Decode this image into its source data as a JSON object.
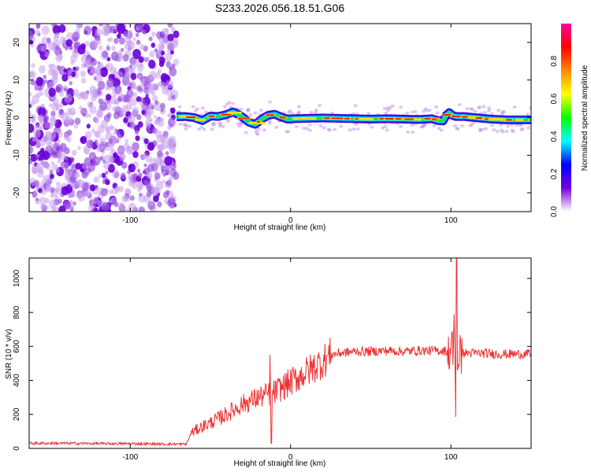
{
  "title": "S233.2026.056.18.51.G06",
  "chart_data": [
    {
      "type": "heatmap",
      "xlabel": "Height of straight line (km)",
      "ylabel": "Frequency (Hz)",
      "xlim": [
        -163,
        150
      ],
      "ylim": [
        -25,
        25
      ],
      "xticks": [
        -100,
        0,
        100
      ],
      "xtick_labels": [
        "-100",
        "0",
        "100"
      ],
      "yticks": [
        20,
        10,
        0,
        -10,
        -20
      ],
      "ytick_labels": [
        "20",
        "10",
        "0",
        "-10",
        "-20"
      ],
      "noise_region_x": [
        -163,
        -71
      ],
      "signal_start_x": -71,
      "signal_track": {
        "x": [
          -71,
          -66,
          -60,
          -55,
          -50,
          -45,
          -40,
          -36,
          -32,
          -29,
          -26,
          -22,
          -18,
          -14,
          -10,
          -6,
          -2,
          2,
          10,
          20,
          30,
          40,
          50,
          60,
          70,
          80,
          88,
          92,
          95,
          97,
          99,
          101,
          103,
          108,
          115,
          125,
          135,
          150
        ],
        "freq": [
          0.2,
          0.3,
          0.0,
          -0.8,
          0.4,
          0.3,
          0.8,
          1.5,
          0.7,
          -0.2,
          -1.2,
          -1.8,
          -0.4,
          0.6,
          0.9,
          0.2,
          -0.4,
          -0.3,
          -0.2,
          -0.1,
          -0.2,
          -0.3,
          -0.4,
          -0.3,
          -0.4,
          -0.5,
          -0.3,
          -0.8,
          -0.9,
          0.6,
          1.3,
          0.6,
          0.3,
          0.3,
          0.0,
          -0.4,
          -0.6,
          -0.6
        ]
      }
    },
    {
      "type": "line",
      "xlabel": "Height of straight line (km)",
      "ylabel": "SNR (10 * v/v)",
      "xlim": [
        -163,
        150
      ],
      "ylim": [
        0,
        1120
      ],
      "xticks": [
        -100,
        0,
        100
      ],
      "xtick_labels": [
        "-100",
        "0",
        "100"
      ],
      "yticks": [
        0,
        200,
        400,
        600,
        800,
        1000
      ],
      "ytick_labels": [
        "0",
        "200",
        "400",
        "600",
        "800",
        "1000"
      ],
      "color": "#ee3333",
      "series": [
        {
          "name": "SNR",
          "x": [
            -163,
            -140,
            -120,
            -100,
            -80,
            -65,
            -62,
            -55,
            -50,
            -40,
            -30,
            -20,
            -10,
            -5,
            0,
            10,
            20,
            25,
            30,
            40,
            50,
            60,
            70,
            80,
            90,
            95,
            100,
            104,
            110,
            120,
            130,
            150
          ],
          "values": [
            30,
            30,
            28,
            28,
            25,
            25,
            90,
            130,
            150,
            200,
            260,
            300,
            330,
            360,
            390,
            450,
            510,
            550,
            560,
            570,
            570,
            575,
            570,
            575,
            575,
            575,
            570,
            560,
            560,
            560,
            555,
            555
          ]
        }
      ],
      "annotations_peaks": [
        {
          "x": -13,
          "y": 550
        },
        {
          "x": -12,
          "y": 30
        },
        {
          "x": 102,
          "y": 790
        },
        {
          "x": 103.5,
          "y": 1120
        },
        {
          "x": 103,
          "y": 185
        }
      ]
    }
  ],
  "colorbar": {
    "label": "Normalized spectral amplitude",
    "range": [
      0,
      1
    ],
    "ticks": [
      0.0,
      0.2,
      0.4,
      0.6,
      0.8
    ],
    "tick_labels": [
      "0.0",
      "0.2",
      "0.4",
      "0.6",
      "0.8"
    ],
    "colors": [
      "#ffffff",
      "#7700dd",
      "#0000ff",
      "#00ffff",
      "#00ff00",
      "#ffff00",
      "#ff8800",
      "#ff0000",
      "#ff0099"
    ]
  }
}
